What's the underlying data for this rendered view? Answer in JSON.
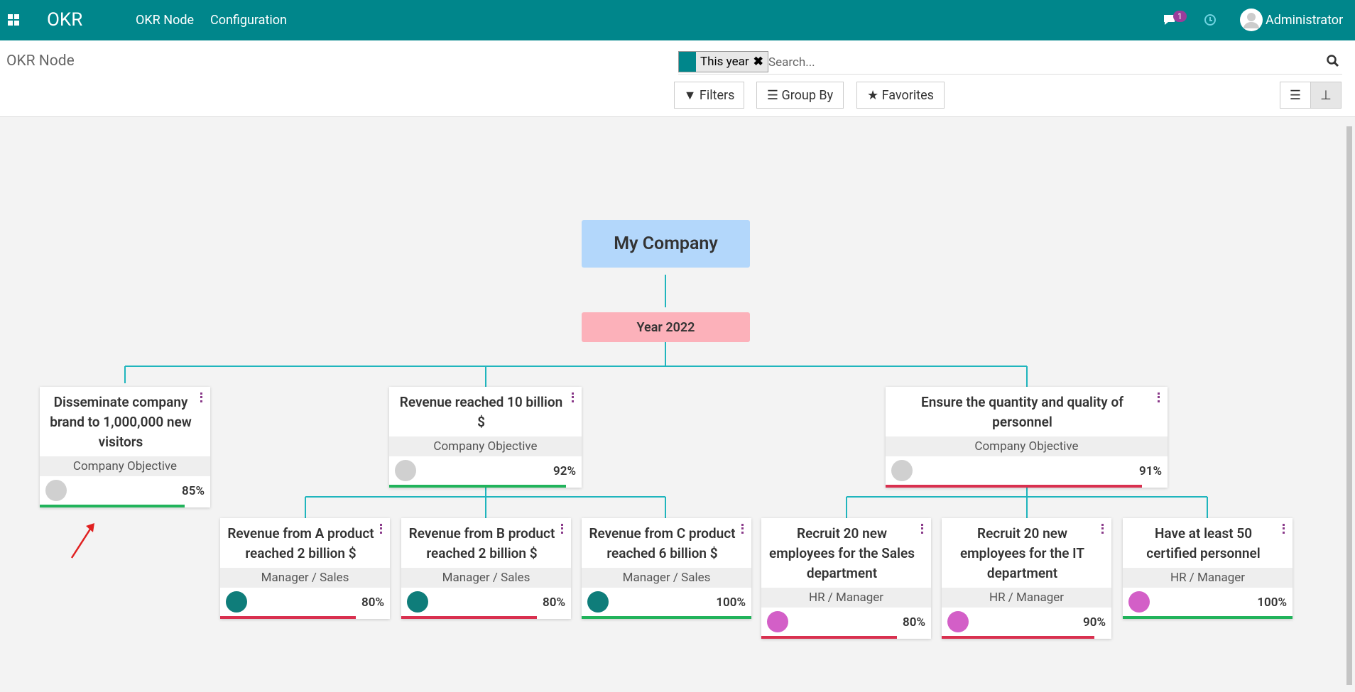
{
  "navbar": {
    "app": "OKR",
    "menu": [
      "OKR Node",
      "Configuration"
    ],
    "message_count": 1,
    "user": "Administrator"
  },
  "control_panel": {
    "breadcrumb": "OKR Node",
    "facet": "This year",
    "search_placeholder": "Search...",
    "buttons": [
      "Filters",
      "Group By",
      "Favorites"
    ]
  },
  "tree": {
    "root": "My Company",
    "period": "Year 2022",
    "objectives": [
      {
        "title": "Disseminate company brand to 1,000,000 new visitors",
        "subtitle": "Company Objective",
        "progress": {
          "value": 85,
          "label": "85%"
        },
        "bar_color": "#21b35b",
        "avatar_color": "#d0d0d0",
        "children": []
      },
      {
        "title": "Revenue reached 10 billion $",
        "subtitle": "Company Objective",
        "progress": {
          "value": 92,
          "label": "92%"
        },
        "bar_color": "#21b35b",
        "avatar_color": "#d0d0d0",
        "children": [
          {
            "title": "Revenue from A product reached 2 billion $",
            "subtitle": "Manager / Sales",
            "progress": {
              "value": 80,
              "label": "80%"
            },
            "bar_color": "#d9304f",
            "avatar_color": "#0f7d7a"
          },
          {
            "title": "Revenue from B product reached 2 billion $",
            "subtitle": "Manager / Sales",
            "progress": {
              "value": 80,
              "label": "80%"
            },
            "bar_color": "#d9304f",
            "avatar_color": "#0f7d7a"
          },
          {
            "title": "Revenue from C product reached 6 billion $",
            "subtitle": "Manager / Sales",
            "progress": {
              "value": 100,
              "label": "100%"
            },
            "bar_color": "#21b35b",
            "avatar_color": "#0f7d7a"
          }
        ]
      },
      {
        "title": "Ensure the quantity and quality of personnel",
        "subtitle": "Company Objective",
        "progress": {
          "value": 91,
          "label": "91%"
        },
        "bar_color": "#d9304f",
        "avatar_color": "#d0d0d0",
        "children": [
          {
            "title": "Recruit 20 new employees for the Sales department",
            "subtitle": "HR / Manager",
            "progress": {
              "value": 80,
              "label": "80%"
            },
            "bar_color": "#d9304f",
            "avatar_color": "#d35fc7"
          },
          {
            "title": "Recruit 20 new employees for the IT department",
            "subtitle": "HR / Manager",
            "progress": {
              "value": 90,
              "label": "90%"
            },
            "bar_color": "#d9304f",
            "avatar_color": "#d35fc7"
          },
          {
            "title": "Have at least 50 certified personnel",
            "subtitle": "HR / Manager",
            "progress": {
              "value": 100,
              "label": "100%"
            },
            "bar_color": "#21b35b",
            "avatar_color": "#d35fc7"
          }
        ]
      }
    ]
  }
}
